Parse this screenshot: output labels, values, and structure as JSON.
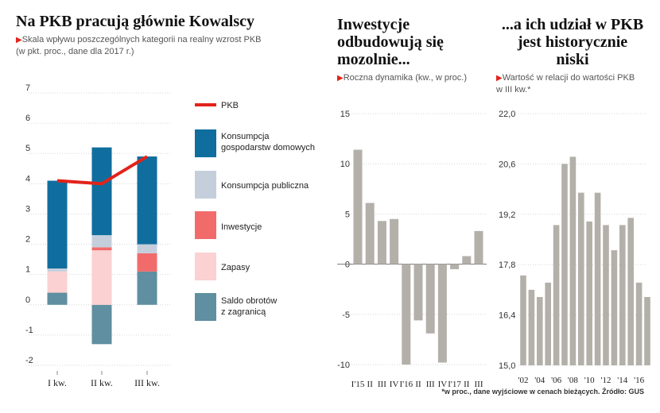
{
  "panel1": {
    "title": "Na PKB pracują głównie Kowalscy",
    "subtitle_line1": "Skala wpływu poszczególnych kategorii na realny wzrost PKB",
    "subtitle_line2": "(w pkt. proc., dane dla 2017 r.)"
  },
  "panel2": {
    "title_line1": "Inwestycje",
    "title_line2": "odbudowują się",
    "title_line3": "mozolnie...",
    "subtitle": "Roczna dynamika (kw., w proc.)"
  },
  "panel3": {
    "title_line1": "...a ich udział w PKB",
    "title_line2": "jest historycznie",
    "title_line3": "niski",
    "subtitle_line1": "Wartość w relacji do wartości PKB",
    "subtitle_line2": "w III kw.*"
  },
  "footnote": "*w proc., dane wyjściowe w cenach bieżących. Źródło: GUS",
  "colors": {
    "consumption": "#0f6e9e",
    "public": "#c5cfdc",
    "investment": "#f26b6b",
    "inventory": "#fbd1d1",
    "net_exports": "#5f8fa0",
    "gdp_line": "#e2231a",
    "grey_bar": "#b3b0aa",
    "title_accent": "#e2231a"
  },
  "chart_data": [
    {
      "type": "bar",
      "stacked": true,
      "categories": [
        "I kw.",
        "II kw.",
        "III kw."
      ],
      "ylim": [
        -2,
        7
      ],
      "yticks": [
        "7",
        "6",
        "5",
        "4",
        "3",
        "2",
        "1",
        "0",
        "-1",
        "-2"
      ],
      "series": [
        {
          "name": "Saldo obrotów z zagranicą",
          "values": [
            0.4,
            -1.3,
            1.1
          ]
        },
        {
          "name": "Zapasy",
          "values": [
            0.7,
            1.8,
            0.0
          ]
        },
        {
          "name": "Inwestycje",
          "values": [
            0.0,
            0.1,
            0.6
          ]
        },
        {
          "name": "Konsumpcja publiczna",
          "values": [
            0.1,
            0.4,
            0.3
          ]
        },
        {
          "name": "Konsumpcja gospodarstw domowych",
          "values": [
            2.9,
            2.9,
            2.9
          ]
        }
      ],
      "line_series": {
        "name": "PKB",
        "values": [
          4.1,
          4.0,
          4.9
        ]
      },
      "legend_labels": {
        "gdp": "PKB",
        "consumption_1": "Konsumpcja",
        "consumption_2": "gospodarstw domowych",
        "public": "Konsumpcja publiczna",
        "investment": "Inwestycje",
        "inventory": "Zapasy",
        "net_exports_1": "Saldo obrotów",
        "net_exports_2": "z zagranicą"
      }
    },
    {
      "type": "bar",
      "categories": [
        "I'15",
        "II",
        "III",
        "IV",
        "I'16",
        "II",
        "III",
        "IV",
        "I'17",
        "II",
        "III"
      ],
      "values": [
        11.4,
        6.1,
        4.3,
        4.5,
        -10.0,
        -5.6,
        -6.9,
        -9.8,
        -0.5,
        0.8,
        3.3
      ],
      "ylim": [
        -10.5,
        15
      ],
      "yticks": [
        "15",
        "10",
        "5",
        "0",
        "-5",
        "-10"
      ]
    },
    {
      "type": "bar",
      "categories": [
        "'02",
        "'03",
        "'04",
        "'05",
        "'06",
        "'07",
        "'08",
        "'09",
        "'10",
        "'11",
        "'12",
        "'13",
        "'14",
        "'15",
        "'16",
        "'17"
      ],
      "xtick_labels": [
        "'02",
        "'04",
        "'06",
        "'08",
        "'10",
        "'12",
        "'14",
        "'16"
      ],
      "values": [
        17.5,
        17.1,
        16.9,
        17.3,
        18.9,
        20.6,
        20.8,
        19.8,
        19.0,
        19.8,
        18.9,
        18.2,
        18.9,
        19.1,
        17.3,
        16.9
      ],
      "ylim": [
        15.0,
        22.0
      ],
      "yticks": [
        "22,0",
        "20,6",
        "19,2",
        "17,8",
        "16,4",
        "15,0"
      ]
    }
  ]
}
